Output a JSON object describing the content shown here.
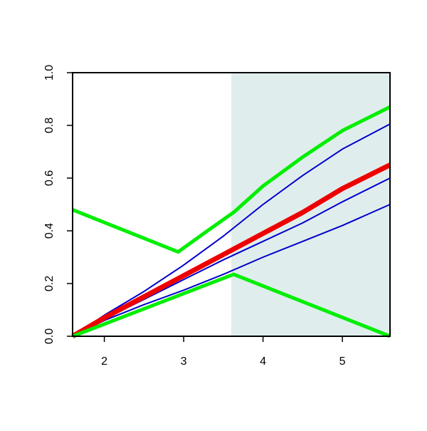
{
  "chart_data": {
    "type": "line",
    "xlim": [
      1.6,
      5.6
    ],
    "ylim": [
      0,
      1
    ],
    "xticks": [
      2,
      3,
      4,
      5
    ],
    "yticks": [
      {
        "value": 0,
        "label": "0.0"
      },
      0.2,
      0.4,
      0.6,
      0.8,
      {
        "value": 1,
        "label": "1.0"
      }
    ],
    "shaded_region": {
      "x": [
        3.6,
        5.6
      ],
      "color": "#e0eded"
    },
    "series": [
      {
        "color": "#0000cc",
        "width": 2,
        "x": [
          1.6,
          2,
          2.5,
          3,
          3.5,
          4,
          4.5,
          5,
          5.6
        ],
        "values": [
          0,
          0.08,
          0.17,
          0.27,
          0.38,
          0.5,
          0.61,
          0.71,
          0.805
        ]
      },
      {
        "color": "#0000cc",
        "width": 2,
        "x": [
          1.6,
          2,
          2.5,
          3,
          3.5,
          4,
          4.5,
          5,
          5.6
        ],
        "values": [
          0,
          0.065,
          0.14,
          0.215,
          0.29,
          0.36,
          0.43,
          0.51,
          0.6
        ]
      },
      {
        "color": "#0000cc",
        "width": 2,
        "x": [
          1.6,
          2,
          2.5,
          3,
          3.5,
          4,
          4.5,
          5,
          5.6
        ],
        "values": [
          0,
          0.06,
          0.12,
          0.175,
          0.235,
          0.3,
          0.36,
          0.42,
          0.5
        ]
      },
      {
        "color": "#ee0000",
        "width": 7,
        "x": [
          1.6,
          2,
          2.5,
          3,
          3.5,
          4,
          4.5,
          5,
          5.6
        ],
        "values": [
          0,
          0.07,
          0.15,
          0.23,
          0.31,
          0.39,
          0.47,
          0.56,
          0.65
        ]
      },
      {
        "color": "#00ee00",
        "width": 5,
        "x": [
          1.6,
          2.93,
          3.3,
          3.63,
          4,
          4.5,
          5,
          5.6
        ],
        "values": [
          0.48,
          0.32,
          0.4,
          0.47,
          0.57,
          0.68,
          0.78,
          0.87
        ]
      },
      {
        "color": "#00ee00",
        "width": 5,
        "x": [
          1.6,
          3.63,
          5.6
        ],
        "values": [
          0,
          0.235,
          0
        ]
      }
    ]
  }
}
